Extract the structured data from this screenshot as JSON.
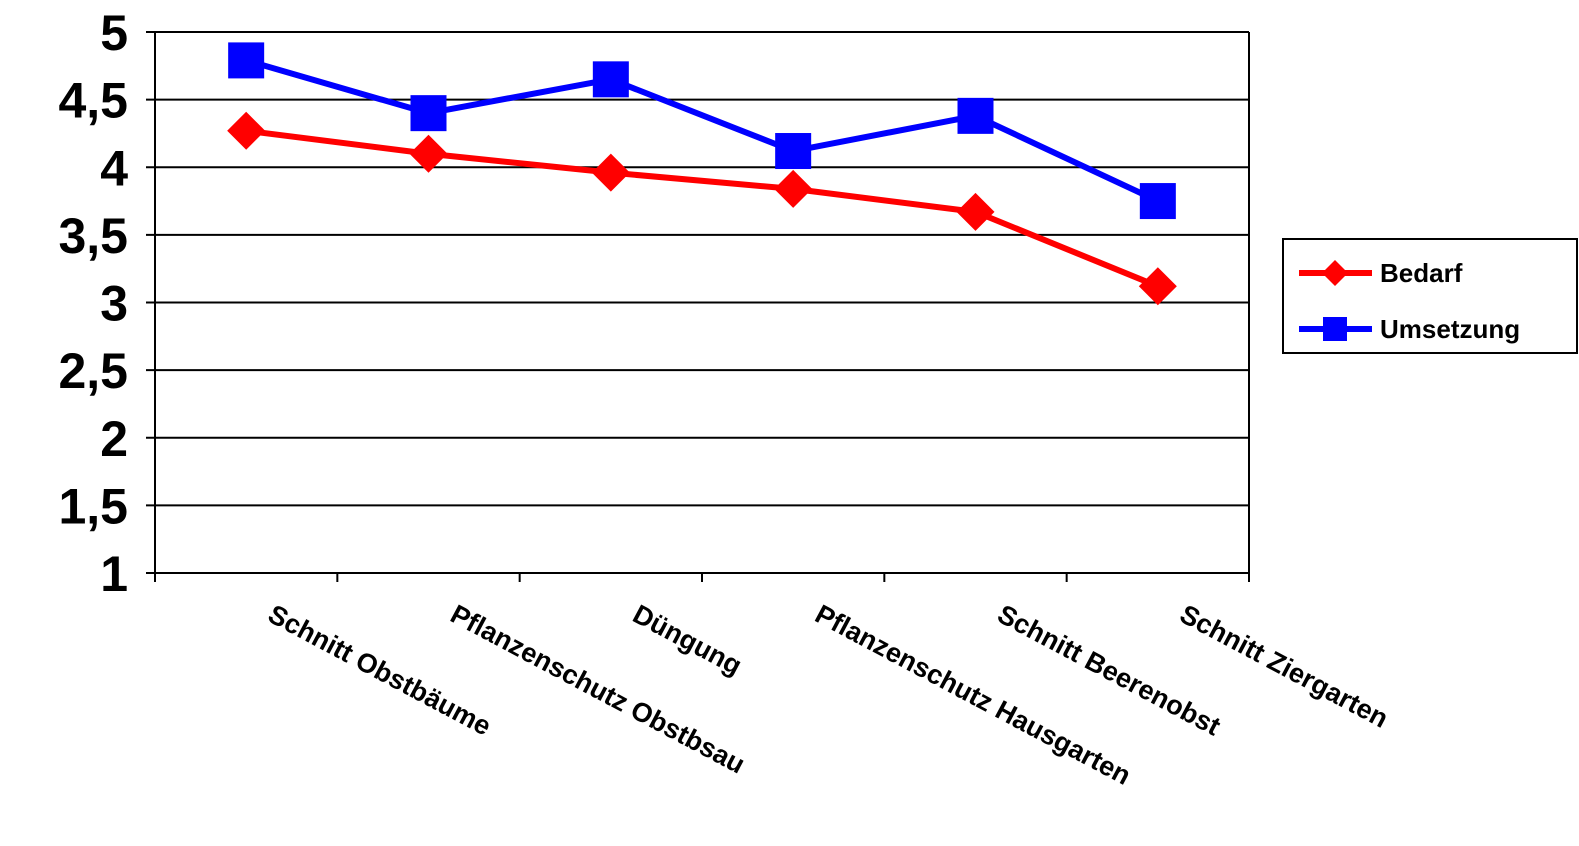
{
  "chart_data": {
    "type": "line",
    "title": "",
    "xlabel": "",
    "ylabel": "",
    "categories": [
      "Schnitt Obstbäume",
      "Pflanzenschutz Obstbsau",
      "Düngung",
      "Pflanzenschutz Hausgarten",
      "Schnitt Beerenobst",
      "Schnitt Ziergarten"
    ],
    "y_ticks": [
      "1",
      "1,5",
      "2",
      "2,5",
      "3",
      "3,5",
      "4",
      "4,5",
      "5"
    ],
    "ylim": [
      1,
      5
    ],
    "grid": true,
    "legend_position": "right",
    "series": [
      {
        "name": "Bedarf",
        "values": [
          4.27,
          4.1,
          3.96,
          3.84,
          3.67,
          3.12
        ],
        "color": "#ff0000",
        "marker": "diamond"
      },
      {
        "name": "Umsetzung",
        "values": [
          4.79,
          4.4,
          4.65,
          4.12,
          4.38,
          3.75
        ],
        "color": "#0000ff",
        "marker": "square"
      }
    ]
  }
}
